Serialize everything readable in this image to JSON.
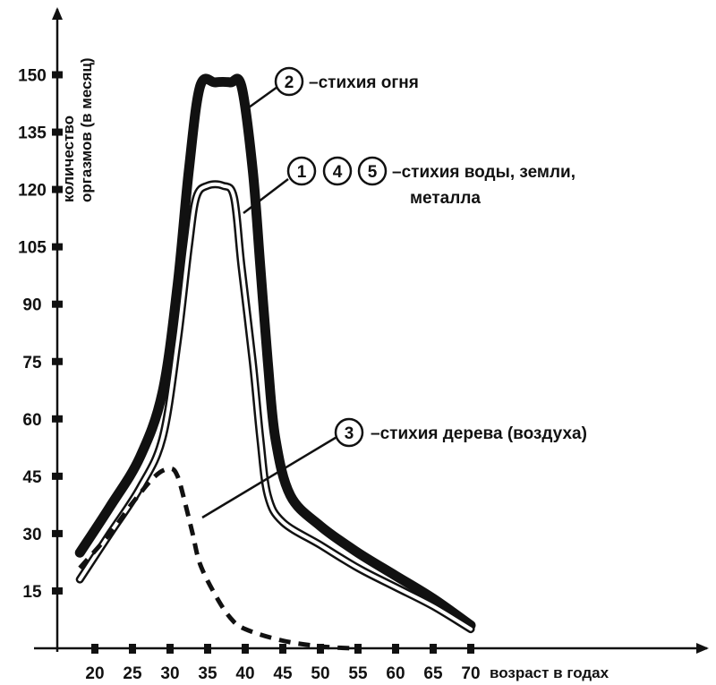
{
  "chart_data": {
    "type": "line",
    "title": "",
    "xlabel": "возраст в годах",
    "ylabel_lines": [
      "количество",
      "оргазмов (в месяц)"
    ],
    "xlim": [
      15,
      78
    ],
    "ylim": [
      0,
      160
    ],
    "x_ticks": [
      20,
      25,
      30,
      35,
      40,
      45,
      50,
      55,
      60,
      65,
      70
    ],
    "y_ticks": [
      15,
      30,
      45,
      60,
      75,
      90,
      105,
      120,
      135,
      150
    ],
    "grid": false,
    "series": [
      {
        "badges": [
          "2"
        ],
        "name": "стихия огня",
        "style": "thick",
        "points": [
          [
            18,
            25
          ],
          [
            22,
            37
          ],
          [
            26,
            50
          ],
          [
            29,
            67
          ],
          [
            31,
            95
          ],
          [
            32.5,
            125
          ],
          [
            34,
            147
          ],
          [
            36,
            148
          ],
          [
            38,
            148
          ],
          [
            39.5,
            147
          ],
          [
            41,
            125
          ],
          [
            42,
            100
          ],
          [
            43,
            75
          ],
          [
            44,
            55
          ],
          [
            46,
            40
          ],
          [
            50,
            32
          ],
          [
            55,
            25
          ],
          [
            60,
            19
          ],
          [
            65,
            13
          ],
          [
            70,
            6
          ]
        ]
      },
      {
        "badges": [
          "1",
          "4",
          "5"
        ],
        "name": "стихия воды, земли, металла",
        "style": "outline",
        "points": [
          [
            18,
            18
          ],
          [
            22,
            30
          ],
          [
            26,
            42
          ],
          [
            29,
            55
          ],
          [
            31,
            80
          ],
          [
            32.5,
            105
          ],
          [
            33.5,
            118
          ],
          [
            35,
            121
          ],
          [
            37,
            121
          ],
          [
            38.5,
            118
          ],
          [
            39.5,
            100
          ],
          [
            41,
            75
          ],
          [
            42,
            55
          ],
          [
            43,
            40
          ],
          [
            45,
            33
          ],
          [
            50,
            27
          ],
          [
            55,
            21
          ],
          [
            60,
            16
          ],
          [
            65,
            11
          ],
          [
            70,
            5
          ]
        ]
      },
      {
        "badges": [
          "3"
        ],
        "name": "стихия дерева (воздуха)",
        "style": "dashed",
        "points": [
          [
            18,
            21
          ],
          [
            22,
            30
          ],
          [
            25,
            38
          ],
          [
            28,
            45
          ],
          [
            30,
            47
          ],
          [
            31,
            45
          ],
          [
            32,
            38
          ],
          [
            33,
            30
          ],
          [
            34,
            22
          ],
          [
            36,
            14
          ],
          [
            38,
            8
          ],
          [
            40,
            5
          ],
          [
            45,
            2
          ],
          [
            50,
            0.5
          ],
          [
            54,
            0
          ]
        ]
      }
    ]
  }
}
